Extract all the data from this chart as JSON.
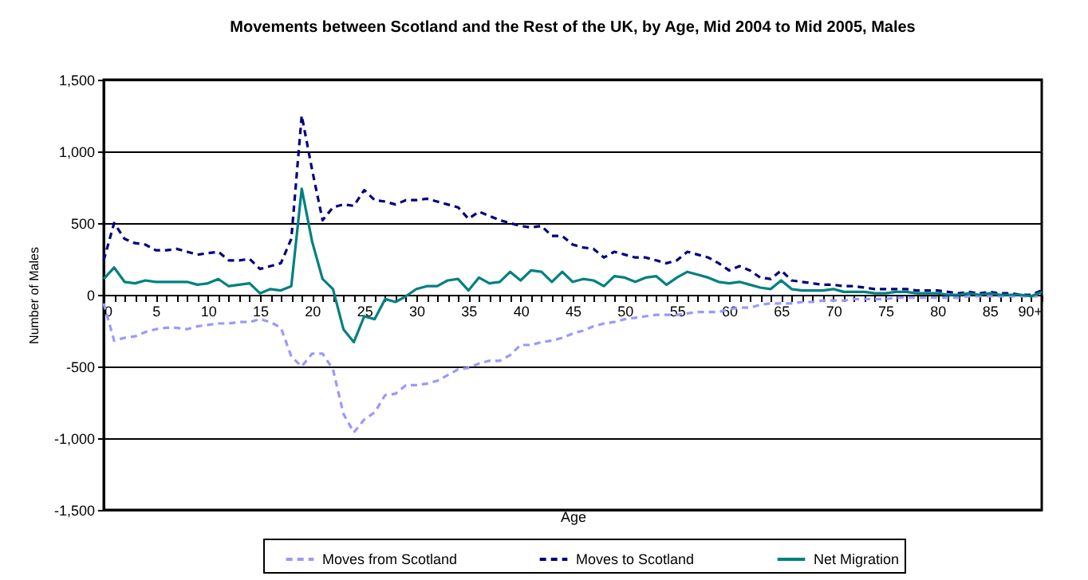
{
  "chart_data": {
    "type": "line",
    "title": "Movements between Scotland and the Rest of the UK, by Age, Mid 2004 to Mid 2005, Males",
    "xlabel": "Age",
    "ylabel": "Number of Males",
    "categories": [
      "0",
      null,
      null,
      null,
      null,
      "5",
      null,
      null,
      null,
      null,
      "10",
      null,
      null,
      null,
      null,
      "15",
      null,
      null,
      null,
      null,
      "20",
      null,
      null,
      null,
      null,
      "25",
      null,
      null,
      null,
      null,
      "30",
      null,
      null,
      null,
      null,
      "35",
      null,
      null,
      null,
      null,
      "40",
      null,
      null,
      null,
      null,
      "45",
      null,
      null,
      null,
      null,
      "50",
      null,
      null,
      null,
      null,
      "55",
      null,
      null,
      null,
      null,
      "60",
      null,
      null,
      null,
      null,
      "65",
      null,
      null,
      null,
      null,
      "70",
      null,
      null,
      null,
      null,
      "75",
      null,
      null,
      null,
      null,
      "80",
      null,
      null,
      null,
      null,
      "85",
      null,
      null,
      null,
      null,
      "90+"
    ],
    "series": [
      {
        "name": "Moves from Scotland",
        "color": "#9999ff",
        "line_style": "dashed",
        "values": [
          -60,
          -320,
          -300,
          -290,
          -260,
          -240,
          -230,
          -230,
          -240,
          -220,
          -210,
          -200,
          -200,
          -190,
          -190,
          -170,
          -190,
          -230,
          -430,
          -500,
          -410,
          -410,
          -520,
          -830,
          -960,
          -870,
          -820,
          -700,
          -690,
          -630,
          -630,
          -620,
          -600,
          -560,
          -520,
          -510,
          -480,
          -460,
          -460,
          -420,
          -350,
          -350,
          -330,
          -320,
          -300,
          -270,
          -250,
          -220,
          -200,
          -190,
          -170,
          -160,
          -150,
          -140,
          -140,
          -140,
          -130,
          -120,
          -120,
          -120,
          -100,
          -90,
          -90,
          -70,
          -60,
          -60,
          -60,
          -50,
          -50,
          -40,
          -40,
          -40,
          -30,
          -30,
          -30,
          -30,
          -20,
          -20,
          -20,
          -20,
          -20,
          -20,
          -20,
          -10,
          -10,
          -10,
          -10,
          -10,
          -10,
          -10,
          -10
        ]
      },
      {
        "name": "Moves to Scotland",
        "color": "#000080",
        "line_style": "dashed",
        "values": [
          240,
          500,
          390,
          360,
          350,
          310,
          310,
          320,
          300,
          280,
          290,
          300,
          240,
          240,
          250,
          180,
          200,
          220,
          390,
          1250,
          870,
          520,
          610,
          630,
          620,
          730,
          660,
          650,
          630,
          660,
          660,
          670,
          650,
          630,
          610,
          530,
          580,
          550,
          520,
          500,
          480,
          470,
          480,
          410,
          410,
          350,
          330,
          320,
          260,
          300,
          280,
          260,
          260,
          240,
          220,
          240,
          300,
          280,
          260,
          220,
          170,
          200,
          170,
          120,
          110,
          170,
          100,
          90,
          80,
          70,
          70,
          60,
          60,
          50,
          40,
          40,
          40,
          40,
          30,
          30,
          30,
          20,
          10,
          20,
          10,
          20,
          10,
          10,
          0,
          0,
          30
        ]
      },
      {
        "name": "Net Migration",
        "color": "#008080",
        "line_style": "solid",
        "values": [
          110,
          190,
          90,
          80,
          100,
          90,
          90,
          90,
          90,
          70,
          80,
          110,
          60,
          70,
          80,
          10,
          40,
          30,
          60,
          740,
          370,
          110,
          40,
          -240,
          -330,
          -150,
          -170,
          -30,
          -50,
          -10,
          40,
          60,
          60,
          100,
          110,
          30,
          120,
          80,
          90,
          160,
          100,
          170,
          160,
          90,
          160,
          90,
          110,
          100,
          60,
          130,
          120,
          90,
          120,
          130,
          70,
          120,
          160,
          140,
          120,
          90,
          80,
          90,
          70,
          50,
          40,
          100,
          40,
          30,
          30,
          30,
          40,
          20,
          20,
          20,
          10,
          10,
          20,
          20,
          10,
          10,
          10,
          0,
          0,
          10,
          0,
          10,
          0,
          0,
          0,
          -10,
          20
        ]
      }
    ],
    "ylim": [
      -1500,
      1500
    ],
    "yticks": [
      {
        "value": -1500,
        "label": "-1,500"
      },
      {
        "value": -1000,
        "label": "-1,000"
      },
      -500,
      0,
      500,
      {
        "value": 1000,
        "label": "1,000"
      },
      {
        "value": 1500,
        "label": "1,500"
      }
    ],
    "grid": "y",
    "legend": "bottom",
    "marker": "none"
  }
}
